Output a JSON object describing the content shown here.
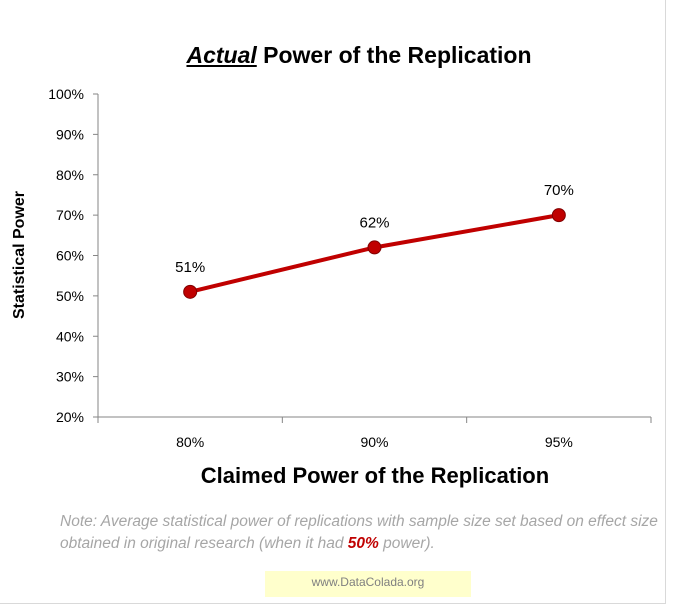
{
  "chart_data": {
    "type": "line",
    "title_emph": "Actual",
    "title_rest": " Power of the Replication",
    "xlabel": "Claimed  Power of the Replication",
    "ylabel": "Statistical Power",
    "categories": [
      "80%",
      "90%",
      "95%"
    ],
    "values": [
      51,
      62,
      70
    ],
    "data_labels": [
      "51%",
      "62%",
      "70%"
    ],
    "ylim": [
      20,
      100
    ],
    "y_ticks": [
      "20%",
      "30%",
      "40%",
      "50%",
      "60%",
      "70%",
      "80%",
      "90%",
      "100%"
    ],
    "grid": false,
    "line_color": "#c00000",
    "marker_color": "#c00000",
    "marker_edge_color": "#800000"
  },
  "note": {
    "before": "Note: Average statistical  power of replications with sample size set based on effect size obtained in original research (when it had ",
    "highlight": "50%",
    "after": " power)."
  },
  "credit": "www.DataColada.org"
}
